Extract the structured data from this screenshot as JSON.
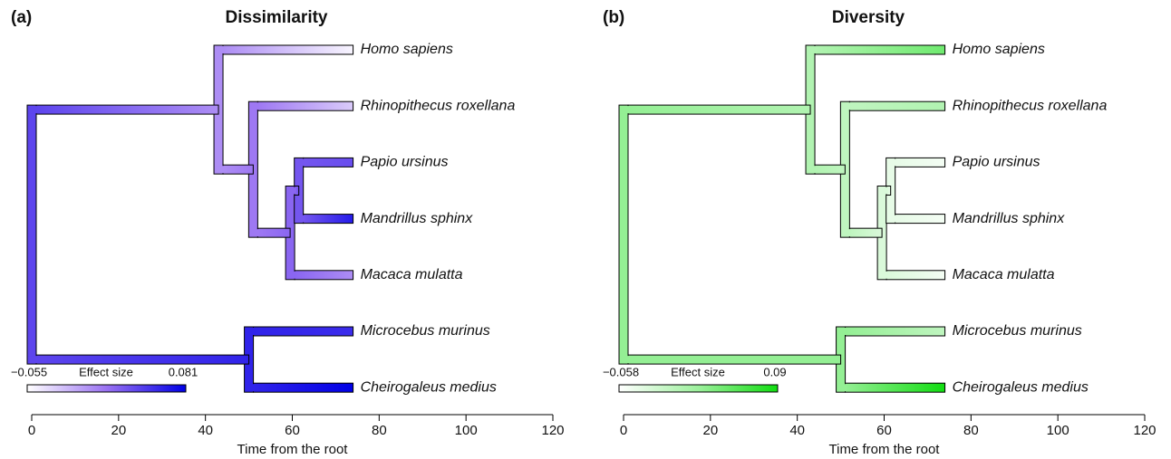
{
  "chart_data": [
    {
      "type": "phylogram",
      "panel_label": "(a)",
      "title": "Dissimilarity",
      "xlabel": "Time from the root",
      "xlim": [
        0,
        120
      ],
      "xticks": [
        0,
        20,
        40,
        60,
        80,
        100,
        120
      ],
      "legend_title": "Effect size",
      "color_range": [
        {
          "value": -0.055,
          "label": "−0.055"
        },
        0.081
      ],
      "palette": [
        "#ffffff",
        "#9a72f2",
        "#0000e6"
      ],
      "nodes": [
        {
          "label": "Homo sapiens",
          "time": 74,
          "effect": -0.05,
          "parent": 8
        },
        {
          "label": "Rhinopithecus roxellana",
          "time": 74,
          "effect": -0.03,
          "parent": 9
        },
        {
          "label": "Papio ursinus",
          "time": 74,
          "effect": 0.035,
          "parent": 11
        },
        {
          "label": "Mandrillus sphinx",
          "time": 74,
          "effect": 0.065,
          "parent": 11
        },
        {
          "label": "Macaca mulatta",
          "time": 74,
          "effect": 0.0,
          "parent": 10
        },
        {
          "label": "Microcebus murinus",
          "time": 74,
          "effect": 0.055,
          "parent": 12
        },
        {
          "label": "Cheirogaleus medius",
          "time": 74,
          "effect": 0.081,
          "parent": 12
        },
        {
          "time": 0,
          "effect": 0.04,
          "parent": null
        },
        {
          "time": 43,
          "effect": 0.0,
          "parent": 7
        },
        {
          "time": 51,
          "effect": 0.01,
          "parent": 8
        },
        {
          "time": 59.5,
          "effect": 0.02,
          "parent": 9
        },
        {
          "time": 61.5,
          "effect": 0.03,
          "parent": 10
        },
        {
          "time": 50,
          "effect": 0.06,
          "parent": 7
        }
      ]
    },
    {
      "type": "phylogram",
      "panel_label": "(b)",
      "title": "Diversity",
      "xlabel": "Time from the root",
      "xlim": [
        0,
        120
      ],
      "xticks": [
        0,
        20,
        40,
        60,
        80,
        100,
        120
      ],
      "legend_title": "Effect size",
      "color_range": [
        {
          "value": -0.058,
          "label": "−0.058"
        },
        0.09
      ],
      "palette": [
        "#ffffff",
        "#9cf09c",
        "#11dd11"
      ],
      "nodes": [
        {
          "label": "Homo sapiens",
          "time": 74,
          "effect": 0.04,
          "parent": 8
        },
        {
          "label": "Rhinopithecus roxellana",
          "time": 74,
          "effect": 0.0,
          "parent": 9
        },
        {
          "label": "Papio ursinus",
          "time": 74,
          "effect": -0.05,
          "parent": 11
        },
        {
          "label": "Mandrillus sphinx",
          "time": 74,
          "effect": -0.05,
          "parent": 11
        },
        {
          "label": "Macaca mulatta",
          "time": 74,
          "effect": -0.05,
          "parent": 10
        },
        {
          "label": "Microcebus murinus",
          "time": 74,
          "effect": -0.01,
          "parent": 12
        },
        {
          "label": "Cheirogaleus medius",
          "time": 74,
          "effect": 0.09,
          "parent": 12
        },
        {
          "time": 0,
          "effect": 0.02,
          "parent": null
        },
        {
          "time": 43,
          "effect": 0.0,
          "parent": 7
        },
        {
          "time": 51,
          "effect": -0.01,
          "parent": 8
        },
        {
          "time": 59.5,
          "effect": -0.03,
          "parent": 9
        },
        {
          "time": 61.5,
          "effect": -0.04,
          "parent": 10
        },
        {
          "time": 50,
          "effect": 0.02,
          "parent": 7
        }
      ]
    }
  ]
}
